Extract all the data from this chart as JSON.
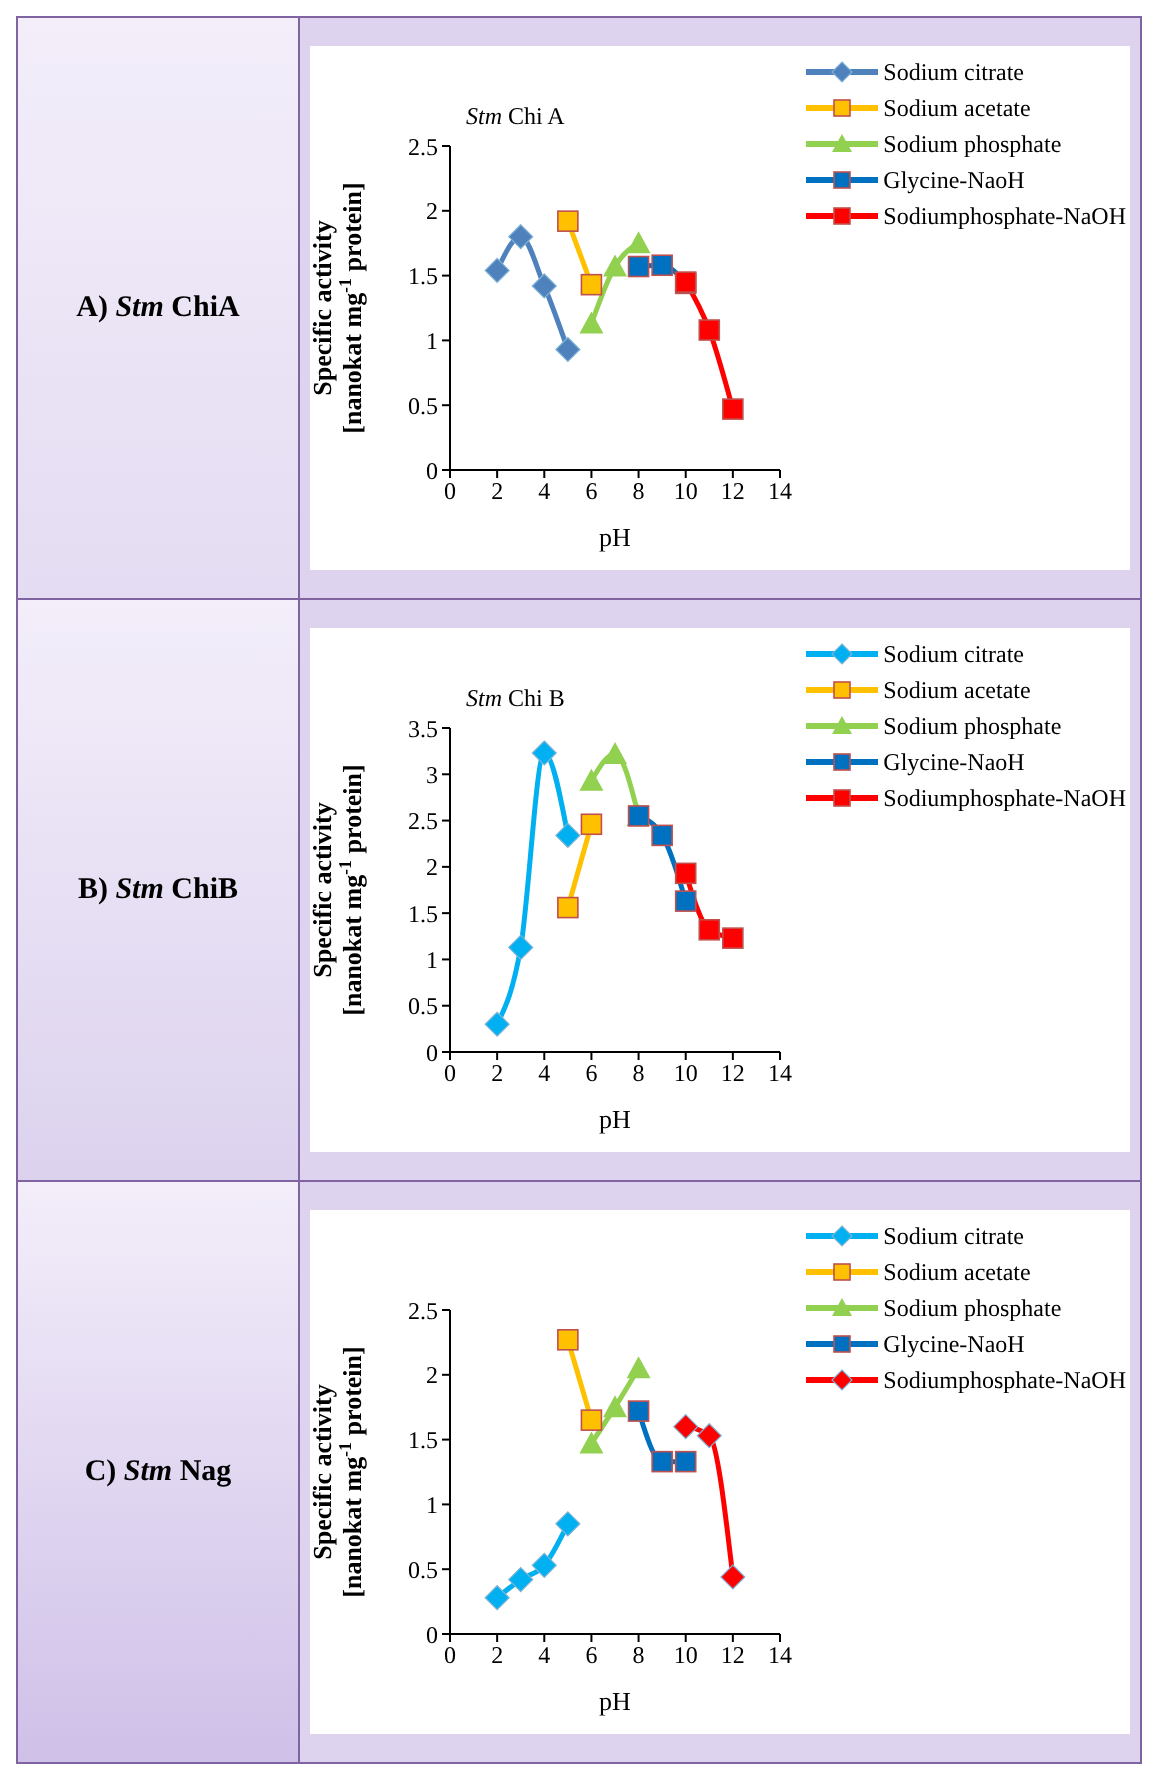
{
  "chart_data": [
    {
      "type": "line",
      "title": "Stm Chi A",
      "annotations": [
        "A) Stm ChiA"
      ],
      "xlabel": "pH",
      "ylabel": "Specific activity\n[nanokat mg$^{-1}$ protein]",
      "xlim": [
        0,
        14
      ],
      "xticks": [
        0,
        2,
        4,
        6,
        8,
        10,
        12,
        14
      ],
      "ylim": [
        0,
        2.5
      ],
      "yticks": [
        0,
        0.5,
        1,
        1.5,
        2,
        2.5
      ],
      "grid": false,
      "legend": "top right",
      "series": [
        {
          "name": "Sodium citrate",
          "color": "#4f81bd",
          "marker": "diamond",
          "x": [
            2,
            3,
            4,
            5
          ],
          "values": [
            1.54,
            1.8,
            1.42,
            0.93
          ]
        },
        {
          "name": "Sodium acetate",
          "color": "#ffc000",
          "marker": "square",
          "x": [
            5,
            6
          ],
          "values": [
            1.92,
            1.43
          ]
        },
        {
          "name": "Sodium phosphate",
          "color": "#92d050",
          "marker": "triangle",
          "x": [
            6,
            7,
            8
          ],
          "values": [
            1.13,
            1.57,
            1.75
          ]
        },
        {
          "name": "Glycine-NaoH",
          "color": "#0070c0",
          "marker": "square",
          "x": [
            8,
            9,
            10
          ],
          "values": [
            1.57,
            1.58,
            1.44
          ]
        },
        {
          "name": "Sodiumphosphate-NaOH",
          "color": "#ff0000",
          "marker": "square",
          "x": [
            10,
            11,
            12
          ],
          "values": [
            1.45,
            1.08,
            0.47
          ]
        }
      ]
    },
    {
      "type": "line",
      "title": "Stm Chi B",
      "annotations": [
        "B) Stm ChiB"
      ],
      "xlabel": "pH",
      "ylabel": "Specific activity\n[nanokat mg$^{-1}$ protein]",
      "xlim": [
        0,
        14
      ],
      "xticks": [
        0,
        2,
        4,
        6,
        8,
        10,
        12,
        14
      ],
      "ylim": [
        0,
        3.5
      ],
      "yticks": [
        0,
        0.5,
        1,
        1.5,
        2,
        2.5,
        3,
        3.5
      ],
      "grid": false,
      "legend": "top right",
      "series": [
        {
          "name": "Sodium citrate",
          "color": "#00b0f0",
          "marker": "diamond",
          "x": [
            2,
            3,
            4,
            5
          ],
          "values": [
            0.3,
            1.13,
            3.23,
            2.34
          ]
        },
        {
          "name": "Sodium acetate",
          "color": "#ffc000",
          "marker": "square",
          "x": [
            5,
            6
          ],
          "values": [
            1.56,
            2.46
          ]
        },
        {
          "name": "Sodium phosphate",
          "color": "#92d050",
          "marker": "triangle",
          "x": [
            6,
            7,
            8
          ],
          "values": [
            2.93,
            3.22,
            2.55
          ]
        },
        {
          "name": "Glycine-NaoH",
          "color": "#0070c0",
          "marker": "square",
          "x": [
            8,
            9,
            10
          ],
          "values": [
            2.55,
            2.34,
            1.63
          ]
        },
        {
          "name": "Sodiumphosphate-NaOH",
          "color": "#ff0000",
          "marker": "square",
          "x": [
            10,
            11,
            12
          ],
          "values": [
            1.93,
            1.32,
            1.23
          ]
        }
      ]
    },
    {
      "type": "line",
      "annotations": [
        "C) Stm Nag"
      ],
      "xlabel": "pH",
      "ylabel": "Specific activity\n[nanokat mg$^{-1}$ protein]",
      "xlim": [
        0,
        14
      ],
      "xticks": [
        0,
        2,
        4,
        6,
        8,
        10,
        12,
        14
      ],
      "ylim": [
        0,
        2.5
      ],
      "yticks": [
        0,
        0.5,
        1,
        1.5,
        2,
        2.5
      ],
      "grid": false,
      "legend": "top right",
      "series": [
        {
          "name": "Sodium citrate",
          "color": "#00b0f0",
          "marker": "diamond",
          "x": [
            2,
            3,
            4,
            5
          ],
          "values": [
            0.28,
            0.42,
            0.53,
            0.85
          ]
        },
        {
          "name": "Sodium acetate",
          "color": "#ffc000",
          "marker": "square",
          "x": [
            5,
            6
          ],
          "values": [
            2.27,
            1.65
          ]
        },
        {
          "name": "Sodium phosphate",
          "color": "#92d050",
          "marker": "triangle",
          "x": [
            6,
            7,
            8
          ],
          "values": [
            1.47,
            1.75,
            2.05
          ]
        },
        {
          "name": "Glycine-NaoH",
          "color": "#0070c0",
          "marker": "square",
          "x": [
            8,
            9,
            10
          ],
          "values": [
            1.72,
            1.33,
            1.33
          ]
        },
        {
          "name": "Sodiumphosphate-NaOH",
          "color": "#ff0000",
          "marker": "diamond",
          "x": [
            10,
            11,
            12
          ],
          "values": [
            1.6,
            1.53,
            0.44
          ]
        }
      ]
    }
  ]
}
